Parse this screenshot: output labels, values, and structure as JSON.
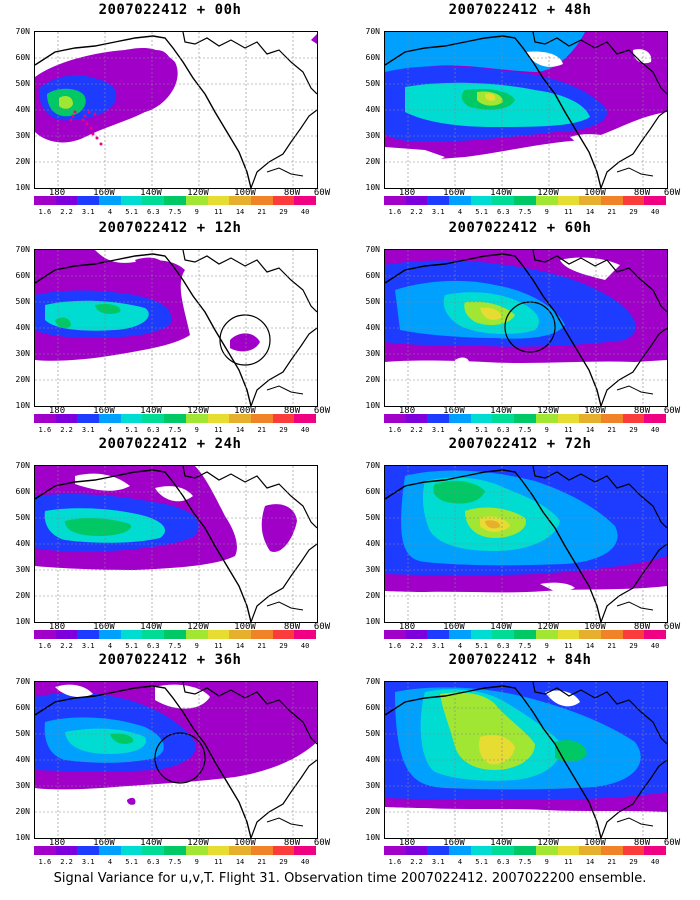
{
  "colorbar": {
    "labels": [
      "1.6",
      "2.2",
      "3.1",
      "4",
      "5.1",
      "6.3",
      "7.5",
      "9",
      "11",
      "14",
      "21",
      "29",
      "40"
    ],
    "colors": [
      "#a000c8",
      "#7d00dc",
      "#1e3cff",
      "#00a0ff",
      "#00dcd2",
      "#00dc96",
      "#00c864",
      "#a0e632",
      "#e6dc32",
      "#e6af2d",
      "#f08228",
      "#fa3c3c",
      "#f00082"
    ]
  },
  "axes": {
    "y_labels": [
      "70N",
      "60N",
      "50N",
      "40N",
      "30N",
      "20N",
      "10N"
    ],
    "x_labels": [
      "180",
      "160W",
      "140W",
      "120W",
      "100W",
      "80W",
      "60W"
    ]
  },
  "panels": [
    {
      "title": "2007022412 + 00h"
    },
    {
      "title": "2007022412 + 48h"
    },
    {
      "title": "2007022412 + 12h"
    },
    {
      "title": "2007022412 + 60h"
    },
    {
      "title": "2007022412 + 24h"
    },
    {
      "title": "2007022412 + 72h"
    },
    {
      "title": "2007022412 + 36h"
    },
    {
      "title": "2007022412 + 84h"
    }
  ],
  "caption": "Signal Variance for u,v,T. Flight 31. Observation time 2007022412. 2007022200 ensemble."
}
